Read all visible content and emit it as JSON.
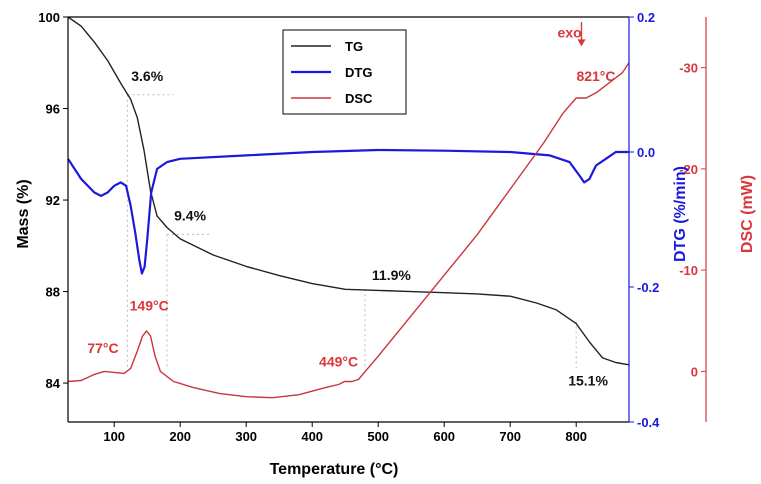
{
  "chart_data": {
    "type": "line",
    "title": "",
    "xlabel": "Temperature (°C)",
    "xlim": [
      30,
      880
    ],
    "x_ticks": [
      "100",
      "200",
      "300",
      "400",
      "500",
      "600",
      "700",
      "800"
    ],
    "y_axes": {
      "mass": {
        "label": "Mass (%)",
        "lim": [
          82.3,
          100
        ],
        "ticks": [
          "84",
          "88",
          "92",
          "96",
          "100"
        ],
        "color": "#000000"
      },
      "dtg": {
        "label": "DTG (%/min)",
        "lim": [
          -0.4,
          0.2
        ],
        "ticks": [
          "-0.4",
          "-0.2",
          "0.0",
          "0.2"
        ],
        "color": "#1a1adc"
      },
      "dsc": {
        "label": "DSC (mW)",
        "lim": [
          5,
          -35
        ],
        "ticks": [
          "0",
          "-10",
          "-20",
          "-30"
        ],
        "color": "#d9373d"
      }
    },
    "series": [
      {
        "name": "TG",
        "axis": "mass",
        "color": "#222222",
        "points": [
          [
            30,
            100
          ],
          [
            50,
            99.6
          ],
          [
            70,
            98.9
          ],
          [
            90,
            98.1
          ],
          [
            110,
            97.1
          ],
          [
            125,
            96.4
          ],
          [
            135,
            95.6
          ],
          [
            145,
            94.2
          ],
          [
            155,
            92.4
          ],
          [
            165,
            91.3
          ],
          [
            180,
            90.8
          ],
          [
            200,
            90.3
          ],
          [
            250,
            89.6
          ],
          [
            300,
            89.1
          ],
          [
            350,
            88.7
          ],
          [
            400,
            88.35
          ],
          [
            450,
            88.1
          ],
          [
            500,
            88.05
          ],
          [
            550,
            88.0
          ],
          [
            600,
            87.95
          ],
          [
            650,
            87.9
          ],
          [
            700,
            87.8
          ],
          [
            740,
            87.5
          ],
          [
            770,
            87.2
          ],
          [
            800,
            86.6
          ],
          [
            820,
            85.8
          ],
          [
            840,
            85.1
          ],
          [
            860,
            84.9
          ],
          [
            880,
            84.8
          ]
        ]
      },
      {
        "name": "DTG",
        "axis": "dtg",
        "color": "#1a1adc",
        "points": [
          [
            30,
            -0.01
          ],
          [
            50,
            -0.04
          ],
          [
            70,
            -0.06
          ],
          [
            80,
            -0.065
          ],
          [
            90,
            -0.06
          ],
          [
            100,
            -0.05
          ],
          [
            110,
            -0.045
          ],
          [
            118,
            -0.05
          ],
          [
            125,
            -0.08
          ],
          [
            132,
            -0.12
          ],
          [
            138,
            -0.16
          ],
          [
            142,
            -0.18
          ],
          [
            146,
            -0.17
          ],
          [
            150,
            -0.13
          ],
          [
            156,
            -0.06
          ],
          [
            165,
            -0.025
          ],
          [
            180,
            -0.015
          ],
          [
            200,
            -0.01
          ],
          [
            300,
            -0.005
          ],
          [
            400,
            0.0
          ],
          [
            500,
            0.003
          ],
          [
            600,
            0.002
          ],
          [
            700,
            0.0
          ],
          [
            760,
            -0.005
          ],
          [
            790,
            -0.015
          ],
          [
            805,
            -0.035
          ],
          [
            812,
            -0.045
          ],
          [
            820,
            -0.04
          ],
          [
            830,
            -0.02
          ],
          [
            845,
            -0.01
          ],
          [
            860,
            0.0
          ],
          [
            880,
            0.0
          ]
        ]
      },
      {
        "name": "DSC",
        "axis": "dsc",
        "color": "#c8373d",
        "points": [
          [
            30,
            1.0
          ],
          [
            50,
            0.9
          ],
          [
            70,
            0.3
          ],
          [
            85,
            0.0
          ],
          [
            100,
            0.1
          ],
          [
            115,
            0.2
          ],
          [
            125,
            -0.3
          ],
          [
            135,
            -2.0
          ],
          [
            143,
            -3.5
          ],
          [
            149,
            -4.0
          ],
          [
            155,
            -3.5
          ],
          [
            162,
            -1.5
          ],
          [
            170,
            0.0
          ],
          [
            190,
            1.0
          ],
          [
            220,
            1.6
          ],
          [
            260,
            2.2
          ],
          [
            300,
            2.5
          ],
          [
            340,
            2.6
          ],
          [
            380,
            2.3
          ],
          [
            420,
            1.6
          ],
          [
            440,
            1.3
          ],
          [
            449,
            1.0
          ],
          [
            460,
            1.0
          ],
          [
            470,
            0.8
          ],
          [
            500,
            -1.5
          ],
          [
            550,
            -5.5
          ],
          [
            600,
            -9.5
          ],
          [
            650,
            -13.5
          ],
          [
            700,
            -18.0
          ],
          [
            750,
            -22.5
          ],
          [
            780,
            -25.5
          ],
          [
            800,
            -27.0
          ],
          [
            815,
            -27.0
          ],
          [
            830,
            -27.5
          ],
          [
            850,
            -28.5
          ],
          [
            870,
            -29.5
          ],
          [
            880,
            -30.5
          ]
        ]
      }
    ],
    "annotations": [
      {
        "text": "3.6%",
        "x": 150,
        "y_axis": "mass",
        "y": 97.2,
        "color": "#111111"
      },
      {
        "text": "9.4%",
        "x": 215,
        "y_axis": "mass",
        "y": 91.1,
        "color": "#111111"
      },
      {
        "text": "11.9%",
        "x": 520,
        "y_axis": "mass",
        "y": 88.5,
        "color": "#111111"
      },
      {
        "text": "15.1%",
        "x": 818,
        "y_axis": "mass",
        "y": 83.9,
        "color": "#111111"
      },
      {
        "text": "77°C",
        "x": 83,
        "y_axis": "dsc",
        "y": -1.8,
        "color": "#d9373d"
      },
      {
        "text": "149°C",
        "x": 153,
        "y_axis": "dsc",
        "y": -6.0,
        "color": "#d9373d"
      },
      {
        "text": "449°C",
        "x": 440,
        "y_axis": "dsc",
        "y": -0.5,
        "color": "#d9373d"
      },
      {
        "text": "821°C",
        "x": 830,
        "y_axis": "dsc",
        "y": -28.7,
        "color": "#d9373d"
      },
      {
        "text": "exo",
        "x": 790,
        "y_axis": "dsc",
        "y": -33.0,
        "color": "#d9373d"
      }
    ],
    "legend": {
      "placement": "top-center",
      "entries": [
        {
          "name": "TG",
          "color": "#222222"
        },
        {
          "name": "DTG",
          "color": "#1a1adc"
        },
        {
          "name": "DSC",
          "color": "#c8373d"
        }
      ]
    },
    "grid": false
  }
}
